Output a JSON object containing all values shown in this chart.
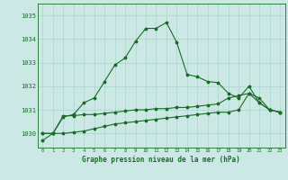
{
  "xlabel": "Graphe pression niveau de la mer (hPa)",
  "bg_color": "#cce8e4",
  "grid_color": "#aad4d0",
  "line_color": "#1a6b2a",
  "hours": [
    0,
    1,
    2,
    3,
    4,
    5,
    6,
    7,
    8,
    9,
    10,
    11,
    12,
    13,
    14,
    15,
    16,
    17,
    18,
    19,
    20,
    21,
    22,
    23
  ],
  "line1": [
    1029.7,
    1030.0,
    1030.7,
    1030.8,
    1031.3,
    1031.5,
    1032.2,
    1032.9,
    1033.2,
    1033.9,
    1034.45,
    1034.45,
    1034.7,
    1033.85,
    1032.5,
    1032.4,
    1032.2,
    1032.15,
    1031.7,
    1031.5,
    1032.0,
    1031.3,
    1031.0,
    1030.9
  ],
  "line2": [
    1030.0,
    1030.0,
    1030.75,
    1030.75,
    1030.8,
    1030.8,
    1030.85,
    1030.9,
    1030.95,
    1031.0,
    1031.0,
    1031.05,
    1031.05,
    1031.1,
    1031.1,
    1031.15,
    1031.2,
    1031.25,
    1031.5,
    1031.6,
    1031.7,
    1031.5,
    1031.0,
    1030.9
  ],
  "line3": [
    1030.0,
    1030.0,
    1030.0,
    1030.05,
    1030.1,
    1030.2,
    1030.3,
    1030.4,
    1030.45,
    1030.5,
    1030.55,
    1030.6,
    1030.65,
    1030.7,
    1030.75,
    1030.8,
    1030.85,
    1030.9,
    1030.9,
    1031.0,
    1031.7,
    1031.3,
    1031.0,
    1030.9
  ],
  "ylim_min": 1029.4,
  "ylim_max": 1035.5,
  "yticks": [
    1030,
    1031,
    1032,
    1033,
    1034,
    1035
  ],
  "ytick_labels": [
    "1030",
    "1031",
    "1032",
    "1033",
    "1034",
    "1035"
  ]
}
